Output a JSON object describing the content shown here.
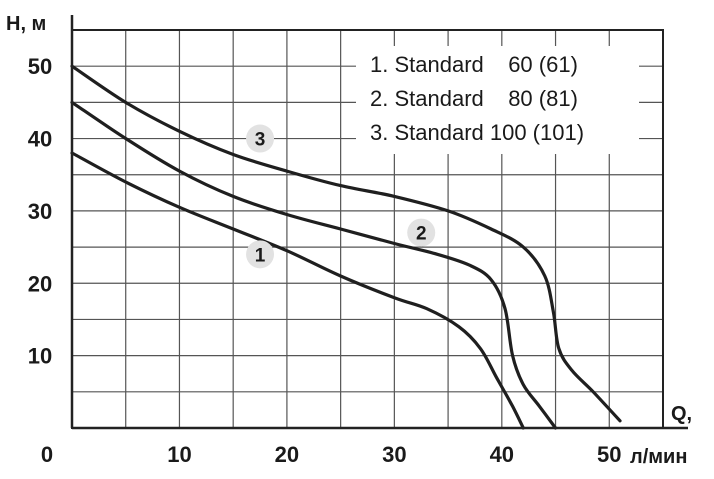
{
  "chart_data": {
    "type": "line",
    "title": "",
    "xlabel": "Q,",
    "xunit": "л/мин",
    "ylabel": "H, м",
    "xlim": [
      0,
      55
    ],
    "ylim": [
      0,
      55
    ],
    "x_ticks": [
      "0",
      "10",
      "20",
      "30",
      "40",
      "50"
    ],
    "y_ticks": [
      "10",
      "20",
      "30",
      "40",
      "50"
    ],
    "grid": true,
    "legend": {
      "placement": "top-right",
      "lines": [
        "1. Standard    60 (61)",
        "2. Standard    80 (81)",
        "3. Standard 100 (101)"
      ]
    },
    "line_color": "#1f1f1f",
    "series": [
      {
        "label": "1",
        "points": [
          [
            0,
            38
          ],
          [
            5,
            34
          ],
          [
            10,
            30.5
          ],
          [
            15,
            27.5
          ],
          [
            20,
            24.5
          ],
          [
            25,
            21
          ],
          [
            30,
            18
          ],
          [
            33,
            16.5
          ],
          [
            36,
            14
          ],
          [
            38,
            11
          ],
          [
            39.5,
            7
          ],
          [
            41,
            3
          ],
          [
            42,
            0
          ]
        ]
      },
      {
        "label": "2",
        "points": [
          [
            0,
            45
          ],
          [
            5,
            40
          ],
          [
            10,
            35.5
          ],
          [
            15,
            32
          ],
          [
            20,
            29.5
          ],
          [
            25,
            27.5
          ],
          [
            30,
            25.5
          ],
          [
            34,
            24
          ],
          [
            37,
            22.5
          ],
          [
            39,
            20.5
          ],
          [
            40.3,
            16.5
          ],
          [
            41,
            10
          ],
          [
            42,
            6
          ],
          [
            43.5,
            3
          ],
          [
            45,
            0
          ]
        ]
      },
      {
        "label": "3",
        "points": [
          [
            0,
            50
          ],
          [
            5,
            45
          ],
          [
            10,
            41
          ],
          [
            15,
            37.8
          ],
          [
            20,
            35.5
          ],
          [
            25,
            33.5
          ],
          [
            30,
            32
          ],
          [
            35,
            30
          ],
          [
            39,
            27.5
          ],
          [
            42,
            25
          ],
          [
            44,
            21
          ],
          [
            44.8,
            16
          ],
          [
            45.3,
            11
          ],
          [
            46.5,
            8
          ],
          [
            48.5,
            5
          ],
          [
            51,
            1
          ]
        ]
      }
    ],
    "curve_label_positions": [
      {
        "label": "1",
        "x": 17.5,
        "y": 24
      },
      {
        "label": "2",
        "x": 32.5,
        "y": 27
      },
      {
        "label": "3",
        "x": 17.5,
        "y": 40
      }
    ]
  }
}
